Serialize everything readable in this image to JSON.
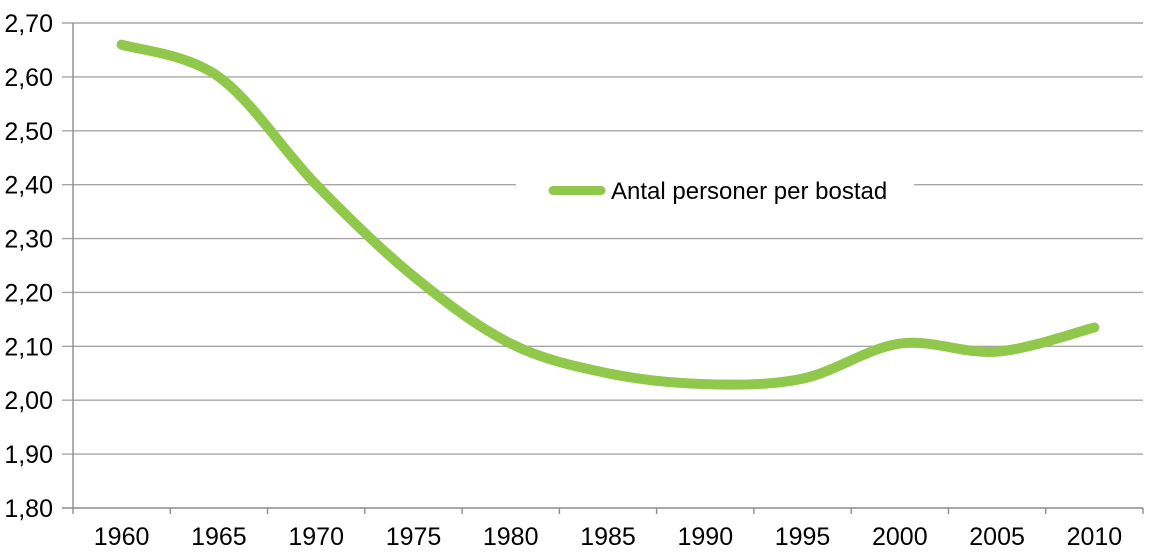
{
  "chart_data": {
    "type": "line",
    "smooth": true,
    "categories": [
      "1960",
      "1965",
      "1970",
      "1975",
      "1980",
      "1985",
      "1990",
      "1995",
      "2000",
      "2005",
      "2010"
    ],
    "series": [
      {
        "name": "Antal personer per bostad",
        "values": [
          2.66,
          2.6,
          2.4,
          2.23,
          2.105,
          2.05,
          2.03,
          2.04,
          2.105,
          2.09,
          2.135
        ],
        "color": "#90C84C"
      }
    ],
    "title": "",
    "xlabel": "",
    "ylabel": "",
    "ylim": [
      1.8,
      2.7
    ],
    "y_ticks": [
      {
        "value": 2.7,
        "label": "2,70"
      },
      {
        "value": 2.6,
        "label": "2,60"
      },
      {
        "value": 2.5,
        "label": "2,50"
      },
      {
        "value": 2.4,
        "label": "2,40"
      },
      {
        "value": 2.3,
        "label": "2,30"
      },
      {
        "value": 2.2,
        "label": "2,20"
      },
      {
        "value": 2.1,
        "label": "2,10"
      },
      {
        "value": 2.0,
        "label": "2,00"
      },
      {
        "value": 1.9,
        "label": "1,90"
      },
      {
        "value": 1.8,
        "label": "1,80"
      }
    ],
    "grid": "horizontal",
    "legend_position": "center"
  },
  "colors": {
    "line": "#90C84C",
    "gridline": "#A6A6A6",
    "axis": "#8C8C8C",
    "text": "#000000",
    "background": "#FFFFFF"
  }
}
